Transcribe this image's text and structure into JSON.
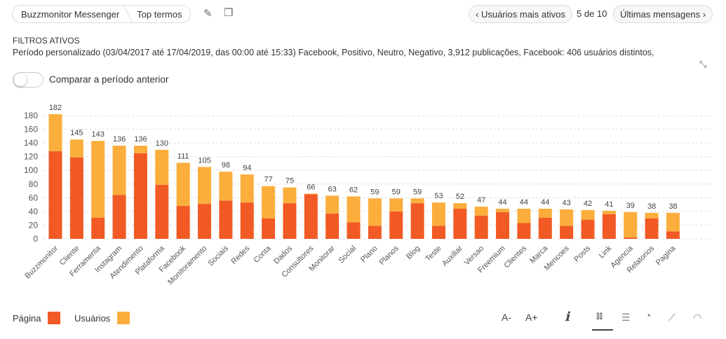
{
  "breadcrumb": [
    "Buzzmonitor Messenger",
    "Top termos"
  ],
  "nav": {
    "prev": "Usuários mais ativos",
    "position": "5 de 10",
    "next": "Últimas mensagens"
  },
  "filters": {
    "title": "FILTROS ATIVOS",
    "text": "Período personalizado (03/04/2017 até 17/04/2019, das 00:00 até 15:33) Facebook, Positivo, Neutro, Negativo, 3,912 publicações, Facebook: 406 usuários distintos,"
  },
  "compare_label": "Comparar a período anterior",
  "tools": {
    "font_minus": "A-",
    "font_plus": "A+"
  },
  "colors": {
    "pagina": "#f15a24",
    "usuarios": "#fbae3c"
  },
  "chart_data": {
    "type": "bar",
    "stacked": true,
    "categories": [
      "Buzzmonitor",
      "Cliente",
      "Ferramenta",
      "Instagram",
      "Atendimento",
      "Plataforma",
      "Facebook",
      "Monitoramento",
      "Sociais",
      "Redes",
      "Conta",
      "Dados",
      "Consultores",
      "Monitorar",
      "Social",
      "Plano",
      "Planos",
      "Blog",
      "Teste",
      "Auxiliar",
      "Versao",
      "Freemium",
      "Clientes",
      "Marca",
      "Mencoes",
      "Posts",
      "Link",
      "Agencia",
      "Relatorios",
      "Pagina"
    ],
    "totals": [
      182,
      145,
      143,
      136,
      136,
      130,
      111,
      105,
      98,
      94,
      77,
      75,
      66,
      63,
      62,
      59,
      59,
      59,
      53,
      52,
      47,
      44,
      44,
      44,
      43,
      42,
      41,
      39,
      38,
      38
    ],
    "series": [
      {
        "name": "Página",
        "values": [
          128,
          119,
          31,
          64,
          125,
          79,
          48,
          51,
          56,
          53,
          30,
          52,
          65,
          37,
          24,
          19,
          40,
          52,
          19,
          44,
          34,
          39,
          23,
          31,
          19,
          28,
          36,
          2,
          30,
          11
        ]
      },
      {
        "name": "Usuários",
        "values": [
          54,
          26,
          112,
          72,
          11,
          51,
          63,
          54,
          42,
          41,
          47,
          23,
          1,
          26,
          38,
          40,
          19,
          7,
          34,
          8,
          13,
          5,
          21,
          13,
          24,
          14,
          5,
          37,
          8,
          27
        ]
      }
    ],
    "yticks": [
      0,
      20,
      40,
      60,
      80,
      100,
      120,
      140,
      160,
      180
    ],
    "ylim": [
      0,
      190
    ],
    "grid": true,
    "legend": "bottom-left"
  }
}
